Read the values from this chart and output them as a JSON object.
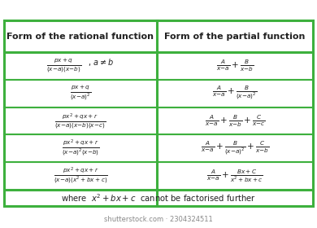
{
  "title_left": "Form of the rational function",
  "title_right": "Form of the partial function",
  "border_color": "#3db03d",
  "bg_color": "#ffffff",
  "text_color": "#222222",
  "watermark": "shutterstock.com · 2304324511",
  "rows_left": [
    [
      "$\\frac{px + q}{(x\\mathrm{-}a)(x\\mathrm{-}b)}$",
      "$ , \\, a \\neq b$"
    ],
    [
      "$\\frac{px + q}{(x\\mathrm{-}a)^2}$",
      ""
    ],
    [
      "$\\frac{px^2 + qx + r}{(x\\mathrm{-}a)(x\\mathrm{-}b)(x\\mathrm{-}c)}$",
      ""
    ],
    [
      "$\\frac{px^2 + qx + r}{(x\\mathrm{-}a)^2(x\\mathrm{-}b)}$",
      ""
    ],
    [
      "$\\frac{px^2 + qx + r}{(x\\mathrm{-}a)(x^2 + bx + c)}$",
      ""
    ]
  ],
  "rows_right": [
    "$\\frac{A}{x\\mathrm{-}a} + \\frac{B}{x\\mathrm{-}b}$",
    "$\\frac{A}{x\\mathrm{-}a} + \\frac{B}{(x\\mathrm{-}a)^2}$",
    "$\\frac{A}{x\\mathrm{-}a} + \\frac{B}{x\\mathrm{-}b} + \\frac{C}{x\\mathrm{-}c}$",
    "$\\frac{A}{x\\mathrm{-}a} + \\frac{B}{(x\\mathrm{-}a)^2} + \\frac{C}{x\\mathrm{-}b}$",
    "$\\frac{A}{x\\mathrm{-}a} + \\frac{Bx + C}{x^2 + bx + c}$"
  ],
  "footer_left": "where  $x^2 + bx + c$",
  "footer_right": "  cannot be factorised further"
}
